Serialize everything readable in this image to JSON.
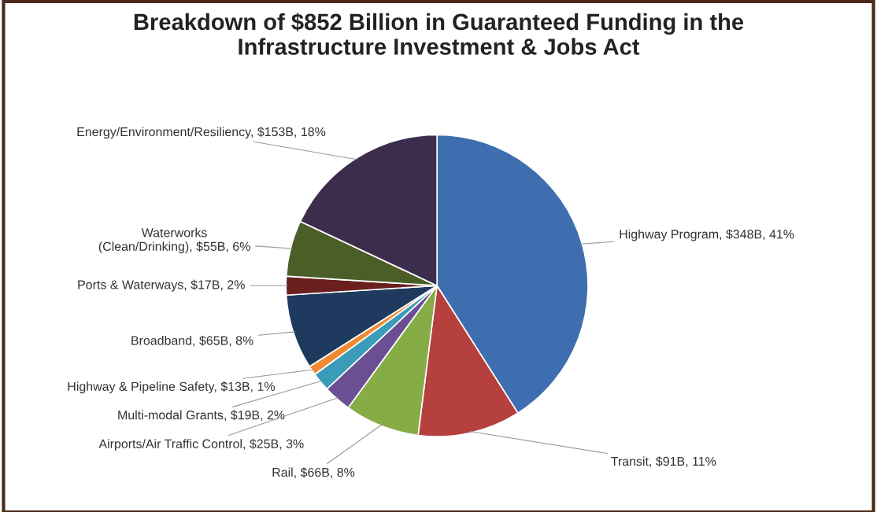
{
  "chart_data": {
    "type": "pie",
    "title": "Breakdown of $852 Billion in Guaranteed Funding in the\nInfrastructure Investment & Jobs Act",
    "categories": [
      "Highway Program",
      "Transit",
      "Rail",
      "Airports/Air Traffic Control",
      "Multi-modal Grants",
      "Highway & Pipeline Safety",
      "Broadband",
      "Ports & Waterways",
      "Waterworks\n(Clean/Drinking)",
      "Energy/Environment/Resiliency"
    ],
    "values": [
      41,
      11,
      8,
      3,
      2,
      1,
      8,
      2,
      6,
      18
    ],
    "value_labels": [
      "$348B, 41%",
      "$91B, 11%",
      "$66B, 8%",
      "$25B, 3%",
      "$19B, 2%",
      "$13B, 1%",
      "$65B, 8%",
      "$17B, 2%",
      "$55B, 6%",
      "$153B, 18%"
    ],
    "colors": [
      "#3f6eb0",
      "#b6403d",
      "#86ac47",
      "#6b4f93",
      "#3a9cb8",
      "#f08a32",
      "#1f3a5f",
      "#6b1f1f",
      "#4c5e28",
      "#3d2d4d"
    ],
    "legend": false
  }
}
